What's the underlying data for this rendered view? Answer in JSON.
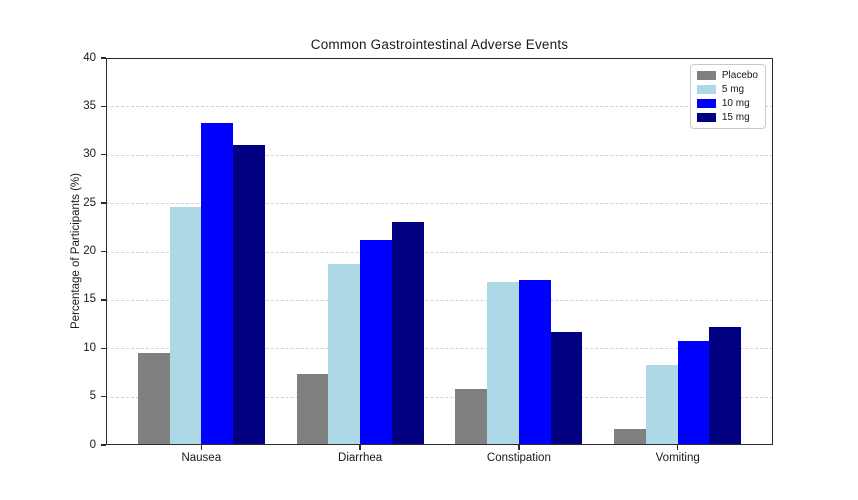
{
  "figure": {
    "background_color": "#ffffff",
    "axis_color": "#2b2b2b",
    "grid_color": "#d2d2d2"
  },
  "chart_data": {
    "type": "bar",
    "title": "Common Gastrointestinal Adverse Events",
    "xlabel": "",
    "ylabel": "Percentage of Participants (%)",
    "categories": [
      "Nausea",
      "Diarrhea",
      "Constipation",
      "Vomiting"
    ],
    "series": [
      {
        "name": "Placebo",
        "color": "#808080",
        "values": [
          9.5,
          7.3,
          5.8,
          1.7
        ]
      },
      {
        "name": "5 mg",
        "color": "#ADD8E6",
        "values": [
          24.6,
          18.7,
          16.8,
          8.3
        ]
      },
      {
        "name": "10 mg",
        "color": "#0000FF",
        "values": [
          33.3,
          21.2,
          17.1,
          10.7
        ]
      },
      {
        "name": "15 mg",
        "color": "#000080",
        "values": [
          31.0,
          23.0,
          11.7,
          12.2
        ]
      }
    ],
    "ylim": [
      0,
      40
    ],
    "yticks": [
      0,
      5,
      10,
      15,
      20,
      25,
      30,
      35,
      40
    ],
    "grid": "horizontal-dashed",
    "legend": {
      "position": "upper-right"
    }
  }
}
